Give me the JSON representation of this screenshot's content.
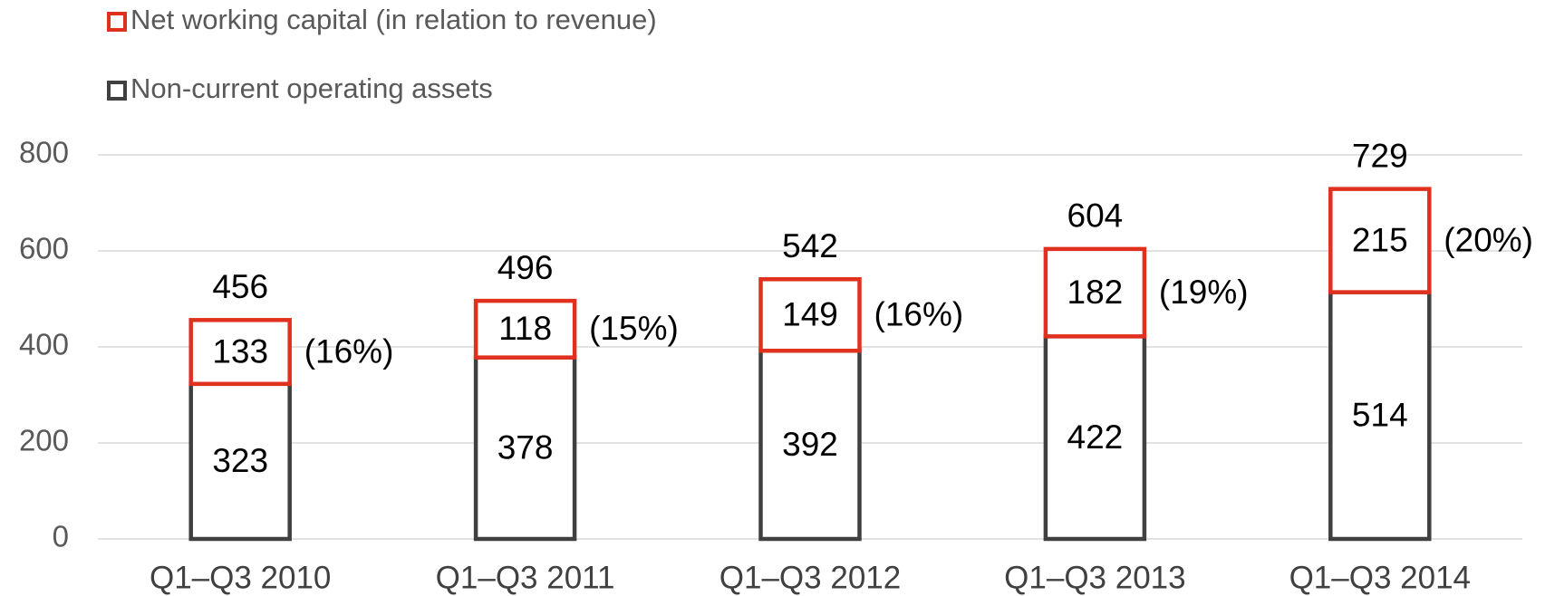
{
  "chart_data": {
    "type": "stacked_bar",
    "categories": [
      "Q1–Q3 2010",
      "Q1–Q3 2011",
      "Q1–Q3 2012",
      "Q1–Q3 2013",
      "Q1–Q3 2014"
    ],
    "series": [
      {
        "name": "Non-current operating assets",
        "color": "#404040",
        "values": [
          323,
          378,
          392,
          422,
          514
        ]
      },
      {
        "name": "Net working capital (in relation to revenue)",
        "color": "#e0301e",
        "values": [
          133,
          118,
          149,
          182,
          215
        ]
      }
    ],
    "totals": [
      456,
      496,
      542,
      604,
      729
    ],
    "ratio_labels": [
      "(16%)",
      "(15%)",
      "(16%)",
      "(19%)",
      "(20%)"
    ],
    "ylim": [
      0,
      800
    ],
    "yticks": [
      0,
      200,
      400,
      600,
      800
    ],
    "grid": true
  }
}
